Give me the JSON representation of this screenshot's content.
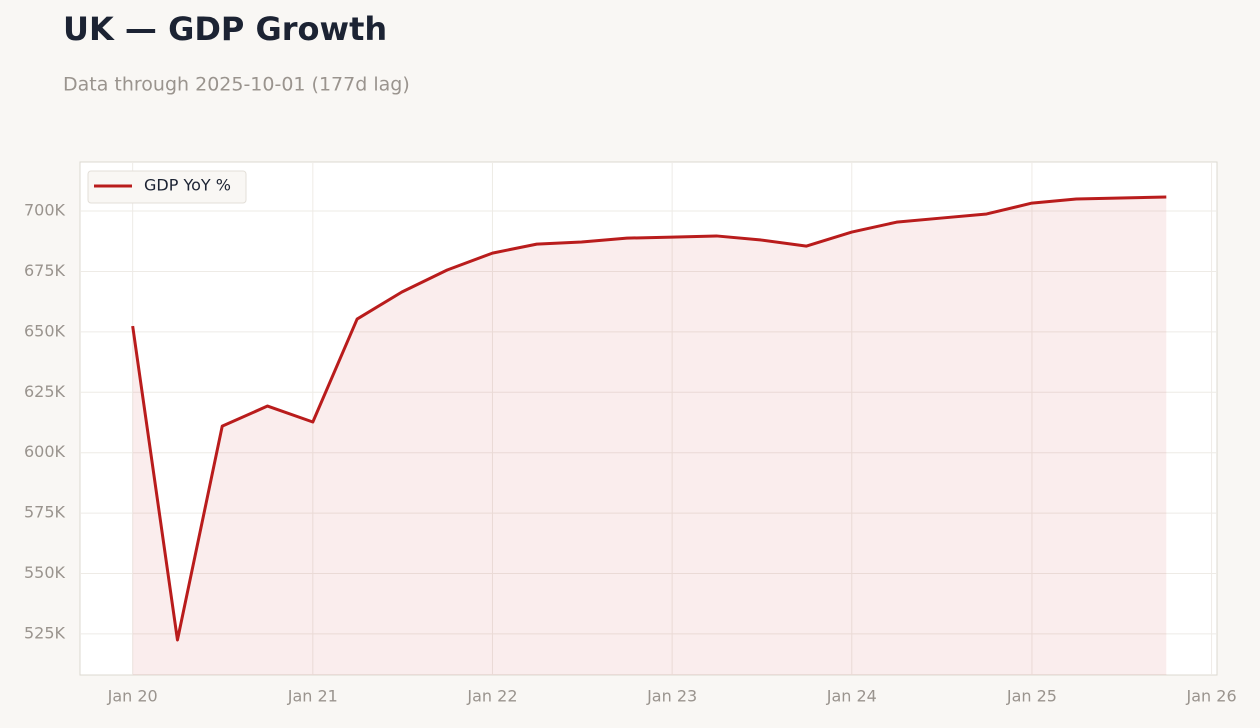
{
  "chart_data": {
    "type": "line",
    "title": "UK — GDP Growth",
    "subtitle": "Data through 2025-10-01 (177d lag)",
    "x": [
      "2020-01",
      "2020-04",
      "2020-07",
      "2020-10",
      "2021-01",
      "2021-04",
      "2021-07",
      "2021-10",
      "2022-01",
      "2022-04",
      "2022-07",
      "2022-10",
      "2023-01",
      "2023-04",
      "2023-07",
      "2023-10",
      "2024-01",
      "2024-04",
      "2024-07",
      "2024-10",
      "2025-01",
      "2025-04",
      "2025-07",
      "2025-10"
    ],
    "series": [
      {
        "name": "GDP YoY %",
        "color": "#b91c1c",
        "values": [
          652400,
          522500,
          611000,
          619300,
          612700,
          655300,
          666500,
          675600,
          682600,
          686300,
          687200,
          688800,
          689200,
          689700,
          688000,
          685500,
          691300,
          695400,
          697100,
          698800,
          703300,
          705000,
          705400,
          705800
        ]
      }
    ],
    "xlim": [
      "2019-09-16",
      "2026-01-12"
    ],
    "xticks": [
      {
        "value": "2020-01",
        "label": "Jan 20"
      },
      {
        "value": "2021-01",
        "label": "Jan 21"
      },
      {
        "value": "2022-01",
        "label": "Jan 22"
      },
      {
        "value": "2023-01",
        "label": "Jan 23"
      },
      {
        "value": "2024-01",
        "label": "Jan 24"
      },
      {
        "value": "2025-01",
        "label": "Jan 25"
      },
      {
        "value": "2026-01",
        "label": "Jan 26"
      }
    ],
    "ylim": [
      508000,
      720300
    ],
    "yticks": [
      {
        "value": 525000,
        "label": "525K"
      },
      {
        "value": 550000,
        "label": "550K"
      },
      {
        "value": 575000,
        "label": "575K"
      },
      {
        "value": 600000,
        "label": "600K"
      },
      {
        "value": 625000,
        "label": "625K"
      },
      {
        "value": 650000,
        "label": "650K"
      },
      {
        "value": 675000,
        "label": "675K"
      },
      {
        "value": 700000,
        "label": "700K"
      }
    ],
    "grid": true,
    "legend": "upper-left",
    "fill_area": true
  }
}
